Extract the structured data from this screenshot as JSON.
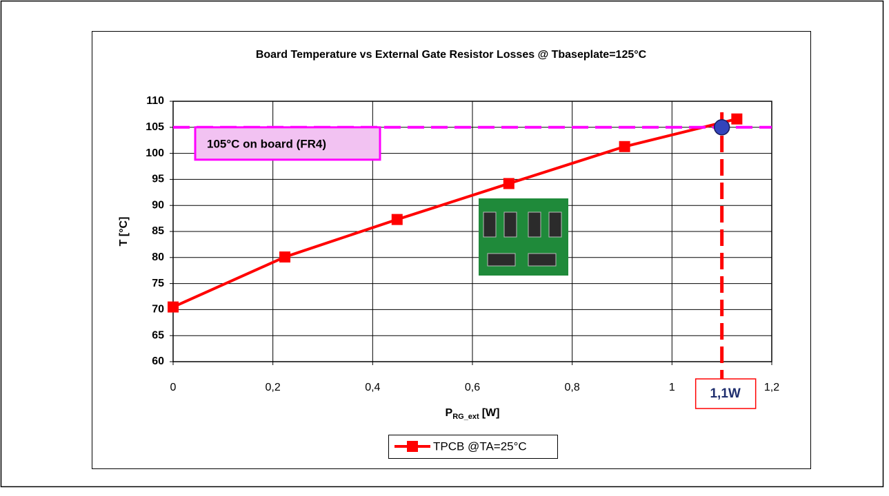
{
  "chart_data": {
    "type": "line",
    "title": "Board Temperature vs External Gate Resistor Losses @ Tbaseplate=125°C",
    "x_label": {
      "main": "P",
      "sub": "RG_ext",
      "unit": "[W]"
    },
    "y_label": "T [°C]",
    "x": [
      0,
      0.224,
      0.449,
      0.673,
      0.905,
      1.13
    ],
    "series": [
      {
        "name": "TPCB @TA=25°C",
        "color": "#ff0000",
        "values": [
          70.5,
          80.1,
          87.3,
          94.2,
          101.3,
          106.6
        ]
      }
    ],
    "xlim": [
      0,
      1.2
    ],
    "xticks": [
      0,
      {
        "value": 0.2,
        "label": "0,2"
      },
      {
        "value": 0.4,
        "label": "0,4"
      },
      {
        "value": 0.6,
        "label": "0,6"
      },
      {
        "value": 0.8,
        "label": "0,8"
      },
      1,
      {
        "value": 1.2,
        "label": "1,2"
      }
    ],
    "ylim": [
      60,
      110
    ],
    "yticks": [
      60,
      65,
      70,
      75,
      80,
      85,
      90,
      95,
      100,
      105,
      110
    ],
    "grid": true,
    "reference_lines": [
      {
        "axis": "y",
        "value": 105,
        "color": "#ff00ff",
        "label": "105°C on board (FR4)"
      },
      {
        "axis": "x",
        "value": 1.1,
        "color": "#ff0000",
        "label": "1,1W"
      }
    ],
    "intersection": {
      "x": 1.1,
      "y": 105,
      "color": "#3344bb"
    },
    "legend": "bottom"
  }
}
